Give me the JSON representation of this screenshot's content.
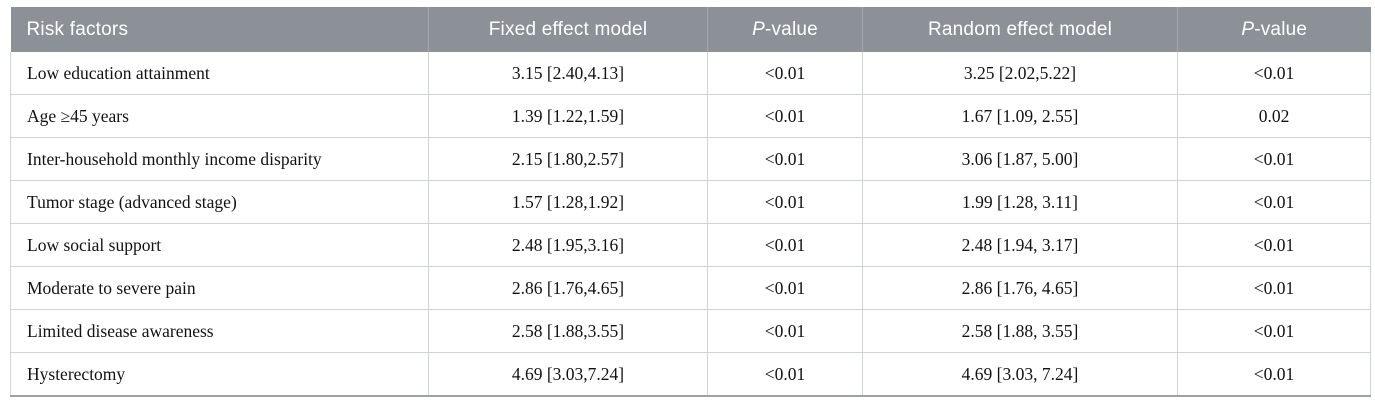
{
  "table": {
    "header": {
      "risk_factors": "Risk factors",
      "fixed_model": "Fixed effect model",
      "p_italic": "P",
      "p_rest": "-value",
      "random_model": "Random effect model"
    },
    "colors": {
      "header_bg": "#8b9196",
      "header_text": "#ffffff",
      "header_divider": "#a3a8ac",
      "body_border": "#d0d3d4",
      "bottom_border": "#9ba1a4",
      "body_text": "#121212"
    },
    "rows": [
      {
        "risk_factor": "Low education attainment",
        "fixed": "3.15 [2.40,4.13]",
        "p_fixed": "<0.01",
        "random": "3.25 [2.02,5.22]",
        "p_random": "<0.01"
      },
      {
        "risk_factor": "Age ≥45 years",
        "fixed": "1.39 [1.22,1.59]",
        "p_fixed": "<0.01",
        "random": "1.67 [1.09, 2.55]",
        "p_random": "0.02"
      },
      {
        "risk_factor": "Inter-household monthly income disparity",
        "fixed": "2.15 [1.80,2.57]",
        "p_fixed": "<0.01",
        "random": "3.06 [1.87, 5.00]",
        "p_random": "<0.01"
      },
      {
        "risk_factor": "Tumor stage (advanced stage)",
        "fixed": "1.57 [1.28,1.92]",
        "p_fixed": "<0.01",
        "random": "1.99 [1.28, 3.11]",
        "p_random": "<0.01"
      },
      {
        "risk_factor": "Low social support",
        "fixed": "2.48 [1.95,3.16]",
        "p_fixed": "<0.01",
        "random": "2.48 [1.94, 3.17]",
        "p_random": "<0.01"
      },
      {
        "risk_factor": "Moderate to severe pain",
        "fixed": "2.86 [1.76,4.65]",
        "p_fixed": "<0.01",
        "random": "2.86 [1.76, 4.65]",
        "p_random": "<0.01"
      },
      {
        "risk_factor": "Limited disease awareness",
        "fixed": "2.58 [1.88,3.55]",
        "p_fixed": "<0.01",
        "random": "2.58 [1.88, 3.55]",
        "p_random": "<0.01"
      },
      {
        "risk_factor": "Hysterectomy",
        "fixed": "4.69 [3.03,7.24]",
        "p_fixed": "<0.01",
        "random": "4.69 [3.03, 7.24]",
        "p_random": "<0.01"
      }
    ]
  }
}
